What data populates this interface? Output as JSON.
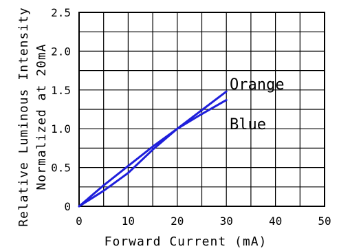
{
  "chart_data": {
    "type": "line",
    "title": "",
    "xlabel": "Forward Current (mA)",
    "ylabel": [
      "Relative Luminous Intensity",
      "Normalized at 20mA"
    ],
    "xlim": [
      0,
      50
    ],
    "ylim": [
      0,
      2.5
    ],
    "xticks": [
      "0",
      "10",
      "20",
      "30",
      "40",
      "50"
    ],
    "yticks": [
      "0",
      "0.5",
      "1.0",
      "1.5",
      "2.0",
      "2.5"
    ],
    "grid": true,
    "series": [
      {
        "name": "Orange",
        "color": "#1f1fdb",
        "x": [
          0,
          5,
          10,
          15,
          20,
          25,
          30
        ],
        "y": [
          0,
          0.2,
          0.43,
          0.73,
          1.0,
          1.24,
          1.48
        ]
      },
      {
        "name": "Blue",
        "color": "#1f1fdb",
        "x": [
          0,
          5,
          10,
          15,
          20,
          25,
          30
        ],
        "y": [
          0,
          0.27,
          0.52,
          0.77,
          1.0,
          1.19,
          1.37
        ]
      }
    ]
  }
}
